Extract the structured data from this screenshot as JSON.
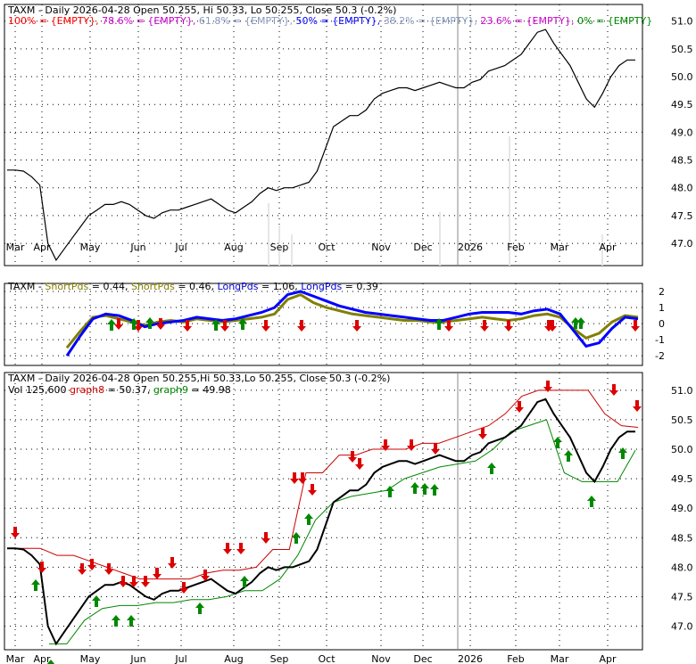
{
  "chart_data": [
    {
      "type": "line",
      "name": "price-panel",
      "header": "TAXM - Daily 2026-04-28 Open 50.255, Hi 50.33, Lo 50.255, Close 50.3 (-0.2%)",
      "fib_legend": [
        {
          "text": "100% = {EMPTY},",
          "color": "#ff0000"
        },
        {
          "text": "78.6% = {EMPTY},",
          "color": "#cc00cc"
        },
        {
          "text": "61.8% = {EMPTY},",
          "color": "#8899bb"
        },
        {
          "text": "50% = {EMPTY},",
          "color": "#0000ff"
        },
        {
          "text": "38.2% = {EMPTY},",
          "color": "#8899bb"
        },
        {
          "text": "23.6% = {EMPTY},",
          "color": "#cc00cc"
        },
        {
          "text": "0% = {EMPTY}",
          "color": "#008800"
        }
      ],
      "yticks": [
        "51.0",
        "50.5",
        "50.0",
        "49.5",
        "49.0",
        "48.5",
        "48.0",
        "47.5",
        "47.0"
      ],
      "ylim": [
        46.6,
        51.3
      ],
      "xticks": [
        "Mar",
        "Apr",
        "May",
        "Jun",
        "Jul",
        "Aug",
        "Sep",
        "Oct",
        "Nov",
        "Dec",
        "2026",
        "Feb",
        "Mar",
        "Apr"
      ],
      "price": [
        48.32,
        48.32,
        48.3,
        48.2,
        48.05,
        47.0,
        46.7,
        46.9,
        47.1,
        47.3,
        47.5,
        47.6,
        47.7,
        47.7,
        47.75,
        47.7,
        47.6,
        47.5,
        47.45,
        47.55,
        47.6,
        47.6,
        47.65,
        47.7,
        47.75,
        47.8,
        47.7,
        47.6,
        47.55,
        47.65,
        47.75,
        47.9,
        48.0,
        47.95,
        48.0,
        48.0,
        48.05,
        48.1,
        48.3,
        48.7,
        49.1,
        49.2,
        49.3,
        49.3,
        49.4,
        49.6,
        49.7,
        49.75,
        49.8,
        49.8,
        49.75,
        49.8,
        49.85,
        49.9,
        49.85,
        49.8,
        49.8,
        49.9,
        49.95,
        50.1,
        50.15,
        50.2,
        50.3,
        50.4,
        50.6,
        50.8,
        50.85,
        50.6,
        50.4,
        50.2,
        49.9,
        49.6,
        49.45,
        49.7,
        50.0,
        50.2,
        50.3,
        50.3
      ]
    },
    {
      "type": "line",
      "name": "indicator-panel",
      "header_parts": [
        {
          "text": "TAXM - ",
          "color": "#000000"
        },
        {
          "text": "ShortPds",
          "color": "#808000"
        },
        {
          "text": " = 0.44, ",
          "color": "#000000"
        },
        {
          "text": "ShortPds",
          "color": "#808000"
        },
        {
          "text": " = 0.46, ",
          "color": "#000000"
        },
        {
          "text": "LongPds",
          "color": "#0000cc"
        },
        {
          "text": " = 1.06, ",
          "color": "#000000"
        },
        {
          "text": "LongPds",
          "color": "#0000cc"
        },
        {
          "text": " = 0.39",
          "color": "#000000"
        }
      ],
      "yticks": [
        "2",
        "1",
        "0",
        "-1",
        "-2"
      ],
      "ylim": [
        -2.6,
        2.5
      ],
      "series": [
        {
          "color": "#808000",
          "values": [
            -1.5,
            -0.5,
            0.4,
            0.5,
            0.3,
            0.1,
            -0.1,
            0.1,
            0.2,
            0.1,
            0.3,
            0.2,
            0.1,
            0.2,
            0.3,
            0.4,
            0.6,
            1.5,
            1.8,
            1.3,
            1.0,
            0.8,
            0.6,
            0.5,
            0.4,
            0.3,
            0.2,
            0.2,
            0.1,
            0.1,
            0.2,
            0.3,
            0.4,
            0.3,
            0.2,
            0.3,
            0.5,
            0.6,
            0.4,
            -0.3,
            -0.9,
            -0.6,
            0.1,
            0.5,
            0.4
          ]
        },
        {
          "color": "#0000ff",
          "values": [
            -2.0,
            -0.8,
            0.3,
            0.6,
            0.5,
            0.2,
            -0.2,
            0.0,
            0.1,
            0.2,
            0.4,
            0.3,
            0.2,
            0.3,
            0.5,
            0.7,
            1.0,
            1.8,
            2.0,
            1.7,
            1.4,
            1.1,
            0.9,
            0.7,
            0.6,
            0.5,
            0.4,
            0.3,
            0.2,
            0.2,
            0.4,
            0.6,
            0.7,
            0.7,
            0.7,
            0.6,
            0.8,
            0.9,
            0.6,
            -0.4,
            -1.4,
            -1.2,
            -0.3,
            0.4,
            0.3
          ]
        }
      ],
      "up_arrows": 8,
      "down_arrows": 14
    },
    {
      "type": "line",
      "name": "stop-panel",
      "header": "TAXM - Daily 2026-04-28 Open 50.255,Hi 50.33,Lo 50.255, Close 50.3 (-0.2%)",
      "legend_parts": [
        {
          "text": "Vol 125,600",
          "color": "#000000"
        },
        {
          "text": " graph8",
          "color": "#cc0000"
        },
        {
          "text": " = 50.37,",
          "color": "#000000"
        },
        {
          "text": " graph9",
          "color": "#008800"
        },
        {
          "text": " = 49.98",
          "color": "#000000"
        }
      ],
      "yticks": [
        "51.0",
        "50.5",
        "50.0",
        "49.5",
        "49.0",
        "48.5",
        "48.0",
        "47.5",
        "47.0"
      ],
      "ylim": [
        46.6,
        51.3
      ],
      "xticks": [
        "Mar",
        "Apr",
        "May",
        "Jun",
        "Jul",
        "Aug",
        "Sep",
        "Oct",
        "Nov",
        "Dec",
        "2026",
        "Feb",
        "Mar",
        "Apr"
      ],
      "upper_stop": [
        48.32,
        48.32,
        48.32,
        48.2,
        48.2,
        48.1,
        48.0,
        47.9,
        47.8,
        47.8,
        47.8,
        47.8,
        47.9,
        47.95,
        47.95,
        48.0,
        48.3,
        48.3,
        49.6,
        49.6,
        49.9,
        49.9,
        50.0,
        50.0,
        50.0,
        50.1,
        50.1,
        50.2,
        50.3,
        50.4,
        50.6,
        50.9,
        51.0,
        51.0,
        51.0,
        51.0,
        50.6,
        50.4,
        50.37
      ],
      "lower_stop": [
        46.7,
        46.7,
        47.1,
        47.3,
        47.35,
        47.35,
        47.4,
        47.4,
        47.45,
        47.45,
        47.5,
        47.6,
        47.6,
        47.8,
        48.2,
        48.8,
        49.1,
        49.2,
        49.25,
        49.3,
        49.5,
        49.6,
        49.7,
        49.75,
        49.8,
        50.0,
        50.3,
        50.4,
        50.5,
        49.6,
        49.45,
        49.45,
        49.45,
        49.98
      ],
      "up_arrows": 19,
      "down_arrows": 24
    }
  ]
}
